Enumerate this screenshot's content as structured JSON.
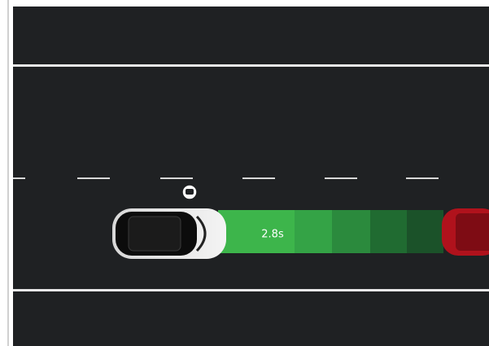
{
  "gap_label": "2.8s"
}
